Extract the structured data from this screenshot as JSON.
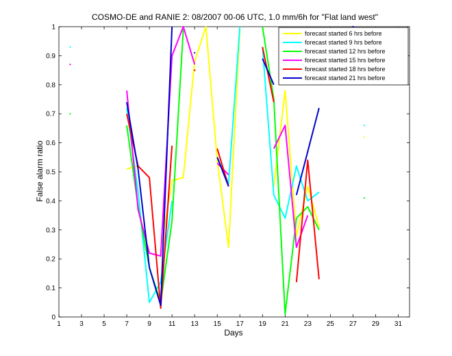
{
  "chart_data": {
    "type": "line",
    "title": "COSMO-DE and RANIE 2: 08/2007 00-06 UTC, 1.0 mm/6h for \"Flat land west\"",
    "xlabel": "Days",
    "ylabel": "False alarm ratio",
    "xlim": [
      1,
      32
    ],
    "ylim": [
      0,
      1
    ],
    "x_ticks": [
      1,
      3,
      5,
      7,
      9,
      11,
      13,
      15,
      17,
      19,
      21,
      23,
      25,
      27,
      29,
      31
    ],
    "y_ticks": [
      0,
      0.1,
      0.2,
      0.3,
      0.4,
      0.5,
      0.6,
      0.7,
      0.8,
      0.9,
      1
    ],
    "y_tick_labels": [
      "0",
      "0.1",
      "0.2",
      "0.3",
      "0.4",
      "0.5",
      "0.6",
      "0.7",
      "0.8",
      "0.9",
      "1"
    ],
    "grid": false,
    "legend_position": "top-right",
    "series": [
      {
        "name": "forecast started 6 hrs before",
        "color": "#ffff00",
        "segments": [
          [
            [
              7,
              0.51
            ],
            [
              8,
              0.52
            ]
          ],
          [
            [
              10,
              0.23
            ],
            [
              11,
              0.47
            ],
            [
              12,
              0.48
            ],
            [
              13,
              0.88
            ],
            [
              14,
              1.0
            ],
            [
              15,
              0.54
            ],
            [
              16,
              0.24
            ],
            [
              17,
              0.99
            ]
          ],
          [
            [
              20,
              0.45
            ],
            [
              21,
              0.78
            ],
            [
              22,
              0.28
            ],
            [
              23,
              0.45
            ],
            [
              24,
              0.31
            ]
          ]
        ],
        "points": [
          [
            28,
            0.62
          ],
          [
            29,
            0.91
          ]
        ]
      },
      {
        "name": "forecast started 9 hrs before",
        "color": "#00ffff",
        "segments": [
          [
            [
              7,
              0.72
            ],
            [
              8,
              0.43
            ],
            [
              9,
              0.05
            ],
            [
              10,
              0.12
            ],
            [
              11,
              0.4
            ]
          ],
          [
            [
              15,
              0.55
            ],
            [
              16,
              0.46
            ],
            [
              17,
              1.0
            ]
          ],
          [
            [
              19,
              0.93
            ],
            [
              20,
              0.42
            ],
            [
              21,
              0.34
            ],
            [
              22,
              0.52
            ],
            [
              23,
              0.4
            ],
            [
              24,
              0.43
            ]
          ]
        ],
        "points": [
          [
            2,
            0.93
          ],
          [
            28,
            0.66
          ]
        ]
      },
      {
        "name": "forecast started 12 hrs before",
        "color": "#00ff00",
        "segments": [
          [
            [
              7,
              0.66
            ],
            [
              8,
              0.38
            ],
            [
              9,
              0.17
            ],
            [
              10,
              0.05
            ],
            [
              11,
              0.33
            ],
            [
              12,
              0.99
            ]
          ],
          [
            [
              19,
              1.0
            ],
            [
              20,
              0.75
            ],
            [
              21,
              0.01
            ],
            [
              22,
              0.34
            ],
            [
              23,
              0.38
            ],
            [
              24,
              0.3
            ]
          ]
        ],
        "points": [
          [
            2,
            0.7
          ],
          [
            28,
            0.41
          ]
        ]
      },
      {
        "name": "forecast started 15 hrs before",
        "color": "#ff00ff",
        "segments": [
          [
            [
              7,
              0.78
            ],
            [
              8,
              0.37
            ],
            [
              9,
              0.22
            ],
            [
              10,
              0.21
            ],
            [
              11,
              0.9
            ],
            [
              12,
              1.0
            ],
            [
              13,
              0.87
            ]
          ],
          [
            [
              15,
              0.53
            ],
            [
              16,
              0.49
            ]
          ],
          [
            [
              20,
              0.58
            ],
            [
              21,
              0.66
            ],
            [
              22,
              0.24
            ],
            [
              23,
              0.35
            ]
          ]
        ],
        "points": [
          [
            2,
            0.87
          ],
          [
            28,
            0.93
          ],
          [
            31,
            0.99
          ]
        ]
      },
      {
        "name": "forecast started 18 hrs before",
        "color": "#ff0000",
        "segments": [
          [
            [
              7,
              0.7
            ],
            [
              8,
              0.52
            ],
            [
              9,
              0.48
            ],
            [
              10,
              0.03
            ],
            [
              11,
              0.59
            ]
          ],
          [
            [
              13,
              0.85
            ]
          ],
          [
            [
              15,
              0.58
            ],
            [
              16,
              0.45
            ]
          ],
          [
            [
              19,
              0.93
            ],
            [
              20,
              0.74
            ]
          ],
          [
            [
              22,
              0.12
            ],
            [
              23,
              0.54
            ],
            [
              24,
              0.13
            ]
          ]
        ],
        "points": [
          [
            13,
            0.85
          ]
        ]
      },
      {
        "name": "forecast started 21 hrs before",
        "color": "#0000cc",
        "segments": [
          [
            [
              7,
              0.74
            ],
            [
              8,
              0.51
            ],
            [
              9,
              0.17
            ],
            [
              10,
              0.04
            ],
            [
              11,
              1.0
            ]
          ],
          [
            [
              13,
              0.91
            ]
          ],
          [
            [
              15,
              0.55
            ],
            [
              16,
              0.45
            ]
          ],
          [
            [
              19,
              0.89
            ],
            [
              20,
              0.8
            ]
          ],
          [
            [
              22,
              0.42
            ],
            [
              24,
              0.72
            ]
          ]
        ],
        "points": [
          [
            27,
            1.0
          ],
          [
            31,
            0.99
          ]
        ]
      }
    ]
  }
}
